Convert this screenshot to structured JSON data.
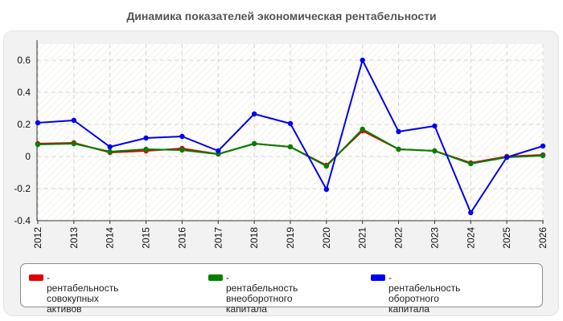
{
  "chart_data": {
    "type": "line",
    "title": "Динамика показателей экономическая рентабельности",
    "xlabel": "",
    "ylabel": "",
    "categories": [
      "2012",
      "2013",
      "2014",
      "2015",
      "2016",
      "2017",
      "2018",
      "2019",
      "2020",
      "2021",
      "2022",
      "2023",
      "2024",
      "2025",
      "2026"
    ],
    "ylim": [
      -0.4,
      0.7
    ],
    "yticks": [
      "0.6",
      "0.4",
      "0.2",
      "0",
      "-0.2",
      "-0.4"
    ],
    "grid": true,
    "legend_placement": "bottom",
    "series": [
      {
        "name": "рентабельность совокупных активов",
        "color": "#e00000",
        "values": [
          0.08,
          0.085,
          0.025,
          0.035,
          0.05,
          0.015,
          0.08,
          0.06,
          -0.055,
          0.16,
          0.045,
          0.035,
          -0.04,
          0.0,
          0.01
        ]
      },
      {
        "name": "рентабельность внеоборотного капитала",
        "color": "#008000",
        "values": [
          0.075,
          0.08,
          0.03,
          0.045,
          0.04,
          0.015,
          0.08,
          0.06,
          -0.06,
          0.17,
          0.045,
          0.035,
          -0.045,
          -0.005,
          0.005
        ]
      },
      {
        "name": "рентабельность оборотного капитала",
        "color": "#0000ee",
        "values": [
          0.21,
          0.225,
          0.06,
          0.115,
          0.125,
          0.035,
          0.265,
          0.205,
          -0.205,
          0.6,
          0.155,
          0.19,
          -0.35,
          -0.005,
          0.065
        ]
      }
    ]
  },
  "legend": {
    "items": [
      {
        "label_line1": "- рентабельность совокупных",
        "label_line2": "активов",
        "color": "#e00000"
      },
      {
        "label_line1": "- рентабельность",
        "label_line2": "внеоборотного капитала",
        "color": "#008000"
      },
      {
        "label_line1": "- рентабельность оборотного",
        "label_line2": "капитала",
        "color": "#0000ee"
      }
    ]
  }
}
